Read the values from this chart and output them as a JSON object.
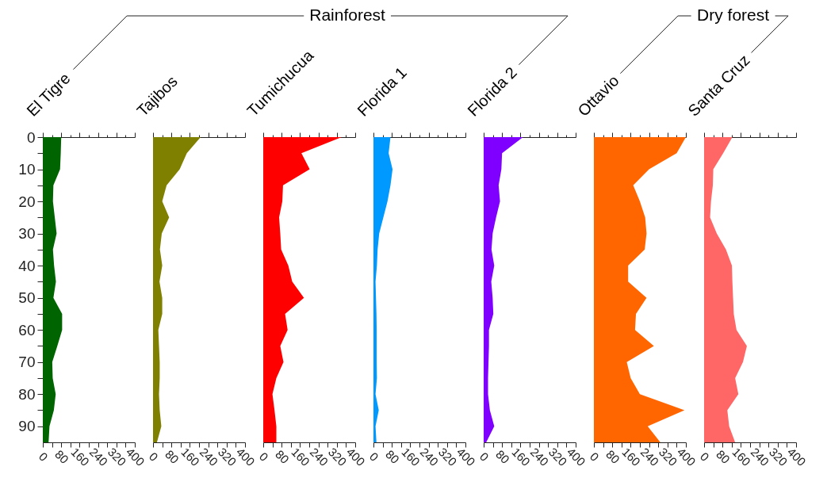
{
  "chart_data": [
    {
      "type": "area",
      "orientation": "horizontal",
      "title": "El Tigre",
      "annotations": [
        "Rainforest"
      ],
      "color": "#006400",
      "x": [
        0,
        5,
        10,
        15,
        20,
        25,
        30,
        35,
        40,
        45,
        50,
        55,
        60,
        65,
        70,
        75,
        80,
        85,
        90,
        95
      ],
      "values": [
        80,
        78,
        75,
        46,
        44,
        52,
        60,
        44,
        49,
        57,
        46,
        84,
        84,
        63,
        41,
        43,
        56,
        48,
        29,
        25
      ],
      "xlim": [
        0,
        400
      ],
      "xticks": [
        0,
        {
          "value": 40,
          "label": null
        },
        80,
        {
          "value": 120,
          "label": null
        },
        160,
        {
          "value": 200,
          "label": null
        },
        240,
        {
          "value": 280,
          "label": null
        },
        320,
        {
          "value": 360,
          "label": null
        },
        400
      ],
      "ylim": [
        95,
        0
      ],
      "yticks": [
        0,
        {
          "value": 5,
          "label": null
        },
        10,
        {
          "value": 15,
          "label": null
        },
        20,
        {
          "value": 25,
          "label": null
        },
        30,
        {
          "value": 35,
          "label": null
        },
        40,
        {
          "value": 45,
          "label": null
        },
        50,
        {
          "value": 55,
          "label": null
        },
        60,
        {
          "value": 65,
          "label": null
        },
        70,
        {
          "value": 75,
          "label": null
        },
        80,
        {
          "value": 85,
          "label": null
        },
        90
      ]
    },
    {
      "type": "area",
      "orientation": "horizontal",
      "title": "Tajibos",
      "color": "#808000",
      "x": [
        0,
        5,
        10,
        15,
        20,
        25,
        30,
        35,
        40,
        45,
        50,
        55,
        60,
        65,
        70,
        75,
        80,
        85,
        90,
        95
      ],
      "values": [
        207,
        147,
        116,
        59,
        40,
        70,
        38,
        30,
        40,
        28,
        40,
        40,
        23,
        26,
        29,
        29,
        26,
        29,
        36,
        17
      ],
      "xlim": [
        0,
        400
      ],
      "xticks": [
        0,
        {
          "value": 40,
          "label": null
        },
        80,
        {
          "value": 120,
          "label": null
        },
        160,
        {
          "value": 200,
          "label": null
        },
        240,
        {
          "value": 280,
          "label": null
        },
        320,
        {
          "value": 360,
          "label": null
        },
        400
      ],
      "ylim": [
        95,
        0
      ],
      "tick_labels": "x"
    },
    {
      "type": "area",
      "orientation": "horizontal",
      "title": "Tumichucua",
      "color": "#ff0000",
      "x": [
        0,
        5,
        10,
        15,
        20,
        25,
        30,
        35,
        40,
        45,
        50,
        55,
        60,
        65,
        70,
        75,
        80,
        85,
        90,
        95
      ],
      "values": [
        341,
        166,
        202,
        86,
        83,
        69,
        74,
        78,
        109,
        126,
        177,
        95,
        106,
        74,
        88,
        57,
        40,
        49,
        57,
        57
      ],
      "xlim": [
        0,
        400
      ],
      "xticks": [
        0,
        {
          "value": 40,
          "label": null
        },
        80,
        {
          "value": 120,
          "label": null
        },
        160,
        {
          "value": 200,
          "label": null
        },
        240,
        {
          "value": 280,
          "label": null
        },
        320,
        {
          "value": 360,
          "label": null
        },
        400
      ],
      "ylim": [
        95,
        0
      ],
      "tick_labels": "x"
    },
    {
      "type": "area",
      "orientation": "horizontal",
      "title": "Florida 1",
      "color": "#0099ff",
      "x": [
        0,
        5,
        10,
        15,
        20,
        25,
        30,
        35,
        40,
        45,
        50,
        55,
        60,
        65,
        70,
        75,
        80,
        85,
        90,
        95
      ],
      "values": [
        74,
        66,
        83,
        74,
        61,
        43,
        25,
        18,
        15,
        9,
        11,
        13,
        14,
        14,
        14,
        15,
        9,
        23,
        9,
        13
      ],
      "xlim": [
        0,
        400
      ],
      "xticks": [
        0,
        {
          "value": 40,
          "label": null
        },
        80,
        {
          "value": 120,
          "label": null
        },
        160,
        {
          "value": 200,
          "label": null
        },
        240,
        {
          "value": 280,
          "label": null
        },
        320,
        {
          "value": 360,
          "label": null
        },
        400
      ],
      "ylim": [
        95,
        0
      ],
      "tick_labels": "x"
    },
    {
      "type": "area",
      "orientation": "horizontal",
      "title": "Florida 2",
      "color": "#8000ff",
      "x": [
        0,
        5,
        10,
        15,
        20,
        25,
        30,
        35,
        40,
        45,
        50,
        55,
        60,
        65,
        70,
        75,
        80,
        85,
        90,
        95
      ],
      "values": [
        171,
        80,
        77,
        65,
        71,
        54,
        39,
        34,
        46,
        33,
        39,
        42,
        23,
        23,
        21,
        19,
        19,
        27,
        46,
        11
      ],
      "xlim": [
        0,
        400
      ],
      "xticks": [
        0,
        {
          "value": 40,
          "label": null
        },
        80,
        {
          "value": 120,
          "label": null
        },
        160,
        {
          "value": 200,
          "label": null
        },
        240,
        {
          "value": 280,
          "label": null
        },
        320,
        {
          "value": 360,
          "label": null
        },
        400
      ],
      "ylim": [
        95,
        0
      ],
      "tick_labels": "x"
    },
    {
      "type": "area",
      "orientation": "horizontal",
      "title": "Ottavio",
      "annotations": [
        "Dry forest"
      ],
      "color": "#ff6600",
      "x": [
        0,
        5,
        10,
        15,
        20,
        25,
        30,
        35,
        40,
        45,
        50,
        55,
        60,
        65,
        70,
        75,
        80,
        85,
        90,
        95
      ],
      "values": [
        400,
        360,
        240,
        171,
        200,
        223,
        229,
        221,
        149,
        149,
        229,
        183,
        179,
        261,
        143,
        160,
        200,
        394,
        234,
        289
      ],
      "xlim": [
        0,
        400
      ],
      "xticks": [
        0,
        {
          "value": 40,
          "label": null
        },
        80,
        {
          "value": 120,
          "label": null
        },
        160,
        {
          "value": 200,
          "label": null
        },
        240,
        {
          "value": 280,
          "label": null
        },
        320,
        {
          "value": 360,
          "label": null
        },
        400
      ],
      "ylim": [
        95,
        0
      ],
      "tick_labels": "x"
    },
    {
      "type": "area",
      "orientation": "horizontal",
      "title": "Santa Cruz",
      "color": "#ff6666",
      "x": [
        0,
        5,
        10,
        15,
        20,
        25,
        30,
        35,
        40,
        45,
        50,
        55,
        60,
        65,
        70,
        75,
        80,
        85,
        90,
        95
      ],
      "values": [
        123,
        83,
        40,
        38,
        30,
        26,
        55,
        95,
        121,
        123,
        126,
        129,
        141,
        186,
        169,
        135,
        149,
        101,
        109,
        135
      ],
      "xlim": [
        0,
        400
      ],
      "xticks": [
        0,
        {
          "value": 40,
          "label": null
        },
        80,
        {
          "value": 120,
          "label": null
        },
        160,
        {
          "value": 200,
          "label": null
        },
        240,
        {
          "value": 280,
          "label": null
        },
        320,
        {
          "value": 360,
          "label": null
        },
        400
      ],
      "ylim": [
        95,
        0
      ],
      "tick_labels": "x"
    }
  ]
}
